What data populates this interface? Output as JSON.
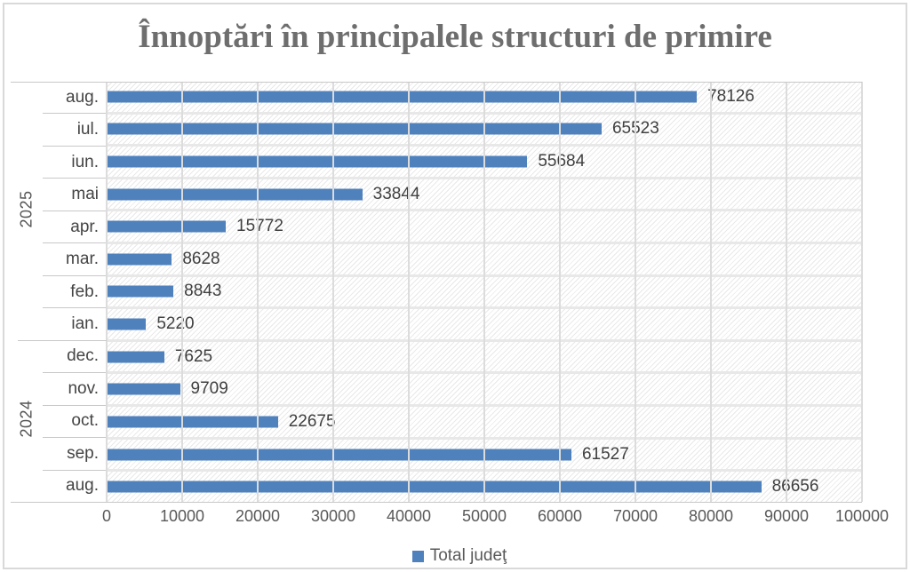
{
  "chart_data": {
    "type": "bar",
    "orientation": "horizontal",
    "title": "Înnoptări în principalele structuri de primire",
    "categories": [
      "aug.",
      "iul.",
      "iun.",
      "mai",
      "apr.",
      "mar.",
      "feb.",
      "ian.",
      "dec.",
      "nov.",
      "oct.",
      "sep.",
      "aug."
    ],
    "category_groups": [
      {
        "label": "2025",
        "count": 8
      },
      {
        "label": "2024",
        "count": 5
      }
    ],
    "series": [
      {
        "name": "Total judeţ",
        "values": [
          78126,
          65523,
          55684,
          33844,
          15772,
          8628,
          8843,
          5220,
          7625,
          9709,
          22675,
          61527,
          86656
        ]
      }
    ],
    "xlim": [
      0,
      100000
    ],
    "x_ticks": [
      0,
      10000,
      20000,
      30000,
      40000,
      50000,
      60000,
      70000,
      80000,
      90000,
      100000
    ],
    "grid": true,
    "legend_position": "bottom",
    "plot_background": "diagonal-hatch"
  },
  "colors": {
    "bar": "#4f81bd",
    "title": "#6e6e6e",
    "value_label": "#404040",
    "tick_label": "#595959",
    "axis_line": "#c8c8c8",
    "gridline": "#dcdcdc",
    "frame_border": "#d9d9d9",
    "background": "#ffffff"
  }
}
